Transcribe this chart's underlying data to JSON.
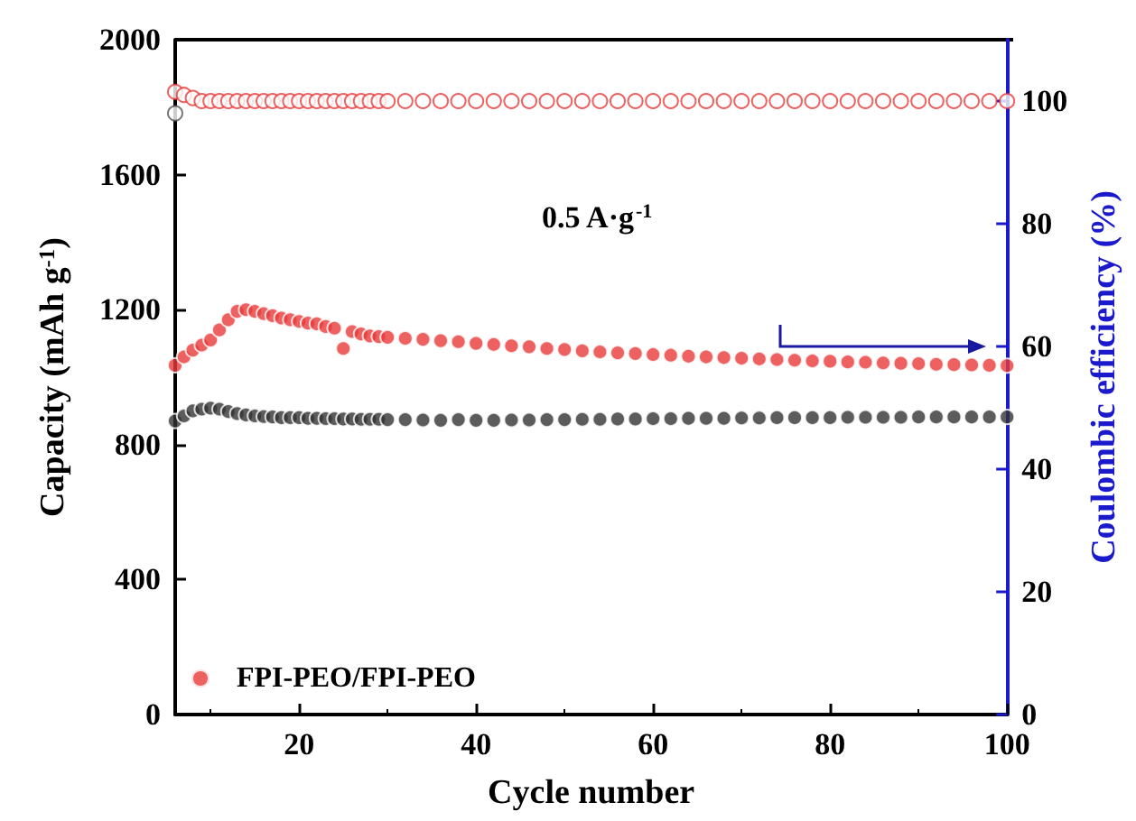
{
  "chart_data": {
    "type": "scatter",
    "xlabel": "Cycle number",
    "ylabel": "Capacity (mAh g$^{-1}$)",
    "y2label": "Coulombic efficiency (%)",
    "annotations": [
      "0.5 A·g$^{-1}$"
    ],
    "x": [
      6,
      7,
      8,
      9,
      10,
      11,
      12,
      13,
      14,
      15,
      16,
      17,
      18,
      19,
      20,
      21,
      22,
      23,
      24,
      25,
      26,
      27,
      28,
      29,
      30,
      32,
      34,
      36,
      38,
      40,
      42,
      44,
      46,
      48,
      50,
      52,
      54,
      56,
      58,
      60,
      62,
      64,
      66,
      68,
      70,
      72,
      74,
      76,
      78,
      80,
      82,
      84,
      86,
      88,
      90,
      92,
      94,
      96,
      98,
      100
    ],
    "xlim": [
      6,
      100
    ],
    "xticks": [
      20,
      40,
      60,
      80,
      100
    ],
    "ylim": [
      0,
      2000
    ],
    "yticks": [
      0,
      400,
      800,
      1200,
      1600,
      2000
    ],
    "y2lim": [
      0,
      110
    ],
    "y2ticks": [
      0,
      20,
      40,
      60,
      80,
      100
    ],
    "marker": "circle",
    "grid": false,
    "legend": "bottom left",
    "series": [
      {
        "color": "#333333",
        "values": [
          870,
          885,
          900,
          905,
          908,
          905,
          898,
          892,
          888,
          885,
          883,
          882,
          880,
          880,
          880,
          878,
          878,
          877,
          877,
          876,
          876,
          875,
          875,
          875,
          874,
          874,
          873,
          872,
          874,
          872,
          872,
          873,
          873,
          874,
          874,
          875,
          875,
          876,
          876,
          877,
          877,
          878,
          878,
          878,
          879,
          879,
          880,
          880,
          880,
          880,
          881,
          881,
          881,
          881,
          882,
          882,
          882,
          882,
          882,
          882
        ]
      },
      {
        "name": "FPI-PEO/FPI-PEO",
        "color": "#e83a3a",
        "values": [
          1035,
          1060,
          1080,
          1095,
          1110,
          1140,
          1170,
          1195,
          1200,
          1195,
          1188,
          1182,
          1175,
          1170,
          1165,
          1160,
          1158,
          1150,
          1145,
          1085,
          1135,
          1128,
          1122,
          1120,
          1118,
          1115,
          1112,
          1108,
          1105,
          1100,
          1097,
          1093,
          1090,
          1085,
          1082,
          1078,
          1075,
          1072,
          1070,
          1067,
          1065,
          1062,
          1060,
          1058,
          1056,
          1054,
          1052,
          1050,
          1048,
          1047,
          1045,
          1044,
          1042,
          1041,
          1040,
          1038,
          1037,
          1036,
          1035,
          1034
        ]
      },
      {
        "color": "#555555",
        "axis": "y2",
        "values": [
          98,
          null,
          null,
          null,
          null,
          null,
          null,
          null,
          null,
          null,
          null,
          null,
          null,
          null,
          null,
          null,
          null,
          null,
          null,
          null,
          null,
          null,
          null,
          null,
          null,
          null,
          null,
          null,
          null,
          null,
          null,
          null,
          null,
          null,
          null,
          null,
          null,
          null,
          null,
          null,
          null,
          null,
          null,
          null,
          null,
          null,
          null,
          null,
          null,
          null,
          null,
          null,
          null,
          null,
          null,
          null,
          null,
          null,
          null,
          null
        ]
      },
      {
        "color": "#e83a3a",
        "axis": "y2",
        "values": [
          101.5,
          101,
          100.5,
          100,
          100,
          100,
          100,
          100,
          100,
          100,
          100,
          100,
          100,
          100,
          100,
          100,
          100,
          100,
          100,
          100,
          100,
          100,
          100,
          100,
          100,
          100,
          100,
          100,
          100,
          100,
          100,
          100,
          100,
          100,
          100,
          100,
          100,
          100,
          100,
          100,
          100,
          100,
          100,
          100,
          100,
          100,
          100,
          100,
          100,
          100,
          100,
          100,
          100,
          100,
          100,
          100,
          100,
          100,
          100,
          100
        ]
      }
    ]
  }
}
